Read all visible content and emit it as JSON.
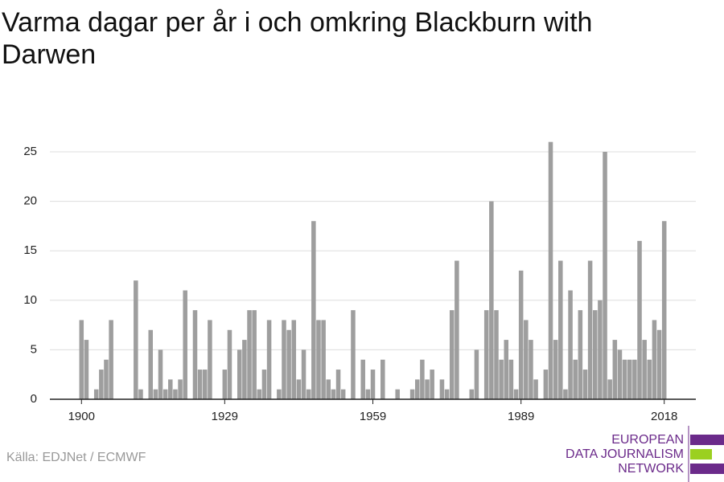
{
  "chart_data": {
    "type": "bar",
    "title": "Varma dagar per år i och omkring Blackburn with Darwen",
    "source": "Källa: EDJNet / ECMWF",
    "logo": [
      "EUROPEAN",
      "DATA JOURNALISM",
      "NETWORK"
    ],
    "color": "#9e9e9e",
    "x": [
      1900,
      1901,
      1902,
      1903,
      1904,
      1905,
      1906,
      1907,
      1908,
      1909,
      1910,
      1911,
      1912,
      1913,
      1914,
      1915,
      1916,
      1917,
      1918,
      1919,
      1920,
      1921,
      1922,
      1923,
      1924,
      1925,
      1926,
      1927,
      1928,
      1929,
      1930,
      1931,
      1932,
      1933,
      1934,
      1935,
      1936,
      1937,
      1938,
      1939,
      1940,
      1941,
      1942,
      1943,
      1944,
      1945,
      1946,
      1947,
      1948,
      1949,
      1950,
      1951,
      1952,
      1953,
      1954,
      1955,
      1956,
      1957,
      1958,
      1959,
      1960,
      1961,
      1962,
      1963,
      1964,
      1965,
      1966,
      1967,
      1968,
      1969,
      1970,
      1971,
      1972,
      1973,
      1974,
      1975,
      1976,
      1977,
      1978,
      1979,
      1980,
      1981,
      1982,
      1983,
      1984,
      1985,
      1986,
      1987,
      1988,
      1989,
      1990,
      1991,
      1992,
      1993,
      1994,
      1995,
      1996,
      1997,
      1998,
      1999,
      2000,
      2001,
      2002,
      2003,
      2004,
      2005,
      2006,
      2007,
      2008,
      2009,
      2010,
      2011,
      2012,
      2013,
      2014,
      2015,
      2016,
      2017,
      2018
    ],
    "values": [
      8,
      6,
      0,
      1,
      3,
      4,
      8,
      0,
      0,
      0,
      0,
      12,
      1,
      0,
      7,
      1,
      5,
      1,
      2,
      1,
      2,
      11,
      0,
      9,
      3,
      3,
      8,
      0,
      0,
      3,
      7,
      0,
      5,
      6,
      9,
      9,
      1,
      3,
      8,
      0,
      1,
      8,
      7,
      8,
      2,
      5,
      1,
      18,
      8,
      8,
      2,
      1,
      3,
      1,
      0,
      9,
      0,
      4,
      1,
      3,
      0,
      4,
      0,
      0,
      1,
      0,
      0,
      1,
      2,
      4,
      2,
      3,
      0,
      2,
      1,
      9,
      14,
      0,
      0,
      1,
      5,
      0,
      9,
      20,
      9,
      4,
      6,
      4,
      1,
      13,
      8,
      6,
      2,
      0,
      3,
      26,
      6,
      14,
      1,
      11,
      4,
      9,
      3,
      14,
      9,
      10,
      25,
      2,
      6,
      5,
      4,
      4,
      4,
      16,
      6,
      4,
      8,
      7,
      18
    ],
    "xlim": [
      1893.6,
      2024.4
    ],
    "xticks": [
      1900,
      1929,
      1959,
      1989,
      2018
    ],
    "ylim": [
      0,
      25
    ],
    "yticks": [
      0,
      5,
      10,
      15,
      20,
      25
    ],
    "grid": true
  }
}
